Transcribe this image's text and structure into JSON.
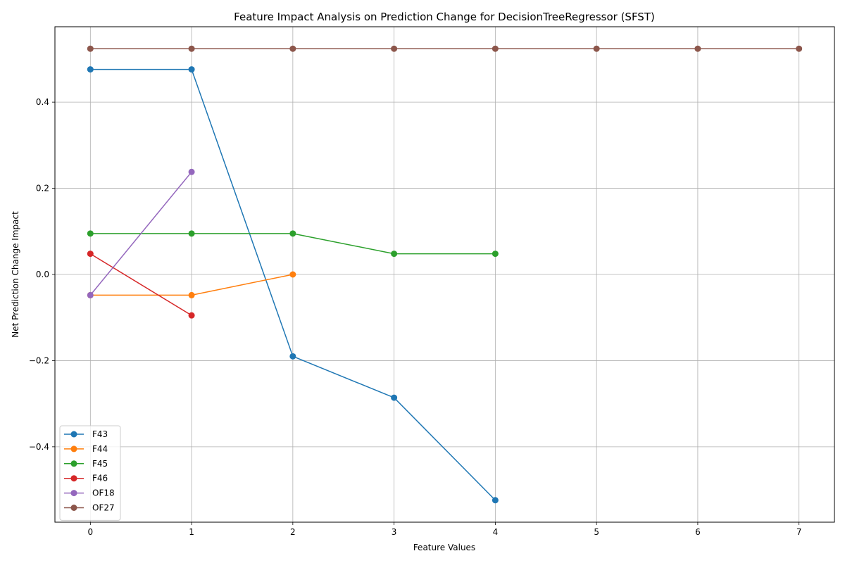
{
  "chart_data": {
    "type": "line",
    "title": "Feature Impact Analysis on Prediction Change for DecisionTreeRegressor (SFST)",
    "xlabel": "Feature Values",
    "ylabel": "Net Prediction Change Impact",
    "xlim": [
      -0.35,
      7.35
    ],
    "ylim": [
      -0.575,
      0.575
    ],
    "xticks": [
      0,
      1,
      2,
      3,
      4,
      5,
      6,
      7
    ],
    "yticks": [
      -0.4,
      -0.2,
      0.0,
      0.2,
      0.4
    ],
    "ytick_labels": [
      "−0.4",
      "−0.2",
      "0.0",
      "0.2",
      "0.4"
    ],
    "grid": true,
    "legend_position": "lower-left",
    "series": [
      {
        "name": "F43",
        "color": "#1f77b4",
        "x": [
          0,
          1,
          2,
          3,
          4
        ],
        "y": [
          0.476,
          0.476,
          -0.19,
          -0.286,
          -0.524
        ]
      },
      {
        "name": "F44",
        "color": "#ff7f0e",
        "x": [
          0,
          1,
          2
        ],
        "y": [
          -0.048,
          -0.048,
          0.0
        ]
      },
      {
        "name": "F45",
        "color": "#2ca02c",
        "x": [
          0,
          1,
          2,
          3,
          4
        ],
        "y": [
          0.095,
          0.095,
          0.095,
          0.048,
          0.048
        ]
      },
      {
        "name": "F46",
        "color": "#d62728",
        "x": [
          0,
          1
        ],
        "y": [
          0.048,
          -0.095
        ]
      },
      {
        "name": "OF18",
        "color": "#9467bd",
        "x": [
          0,
          1
        ],
        "y": [
          -0.048,
          0.238
        ]
      },
      {
        "name": "OF27",
        "color": "#8c564b",
        "x": [
          0,
          1,
          2,
          3,
          4,
          5,
          6,
          7
        ],
        "y": [
          0.524,
          0.524,
          0.524,
          0.524,
          0.524,
          0.524,
          0.524,
          0.524
        ]
      }
    ]
  }
}
